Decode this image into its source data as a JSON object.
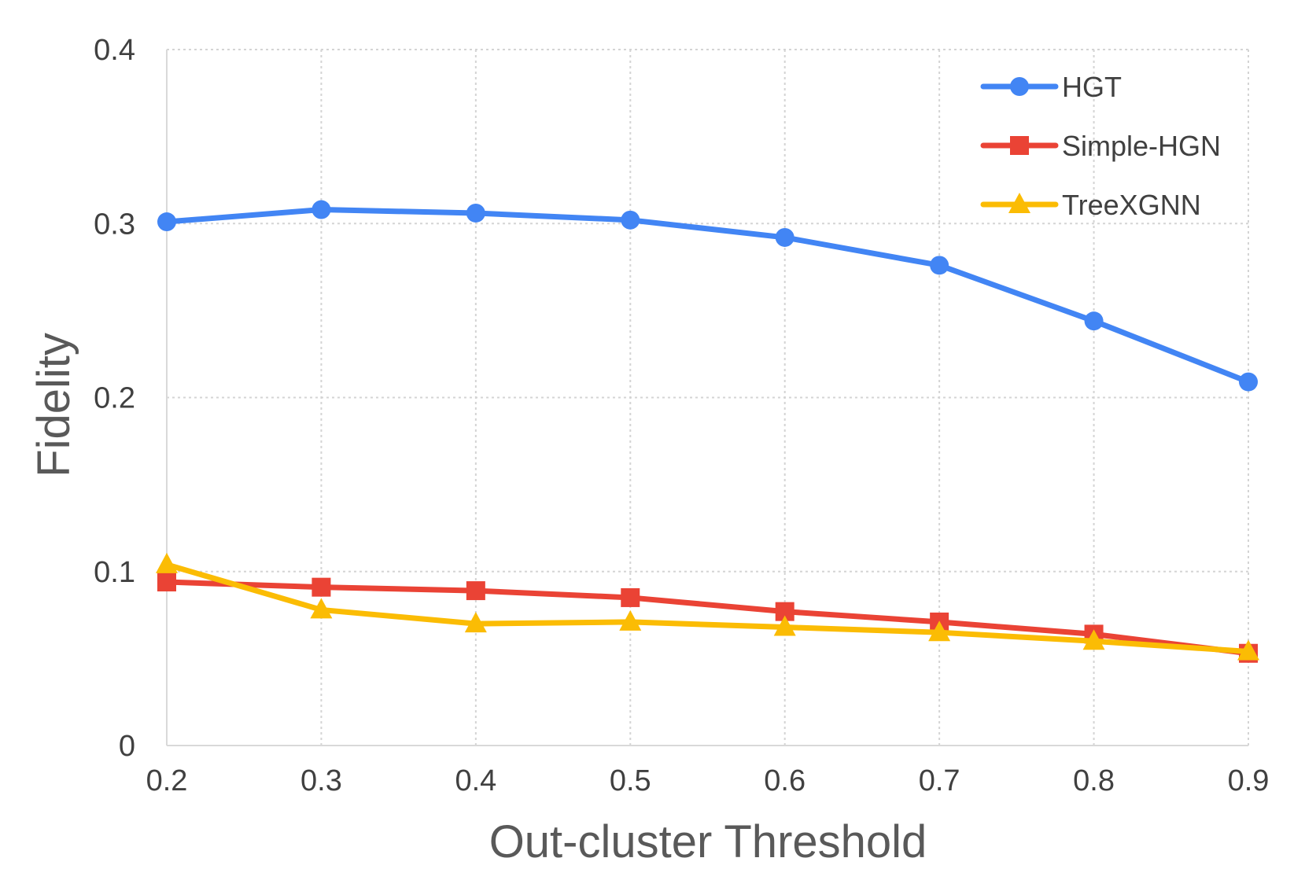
{
  "chart_data": {
    "type": "line",
    "title": "",
    "xlabel": "Out-cluster Threshold",
    "ylabel": "Fidelity",
    "x": [
      0.2,
      0.3,
      0.4,
      0.5,
      0.6,
      0.7,
      0.8,
      0.9
    ],
    "x_tick_labels": [
      "0.2",
      "0.3",
      "0.4",
      "0.5",
      "0.6",
      "0.7",
      "0.8",
      "0.9"
    ],
    "y_tick_values": [
      0,
      0.1,
      0.2,
      0.3,
      0.4
    ],
    "y_tick_labels": [
      "0",
      "0.1",
      "0.2",
      "0.3",
      "0.4"
    ],
    "xlim": [
      0.2,
      0.9
    ],
    "ylim": [
      0,
      0.4
    ],
    "grid": true,
    "legend_position": "top-right",
    "series": [
      {
        "name": "HGT",
        "color": "#4285f4",
        "marker": "circle",
        "values": [
          0.301,
          0.308,
          0.306,
          0.302,
          0.292,
          0.276,
          0.244,
          0.209
        ]
      },
      {
        "name": "Simple-HGN",
        "color": "#ea4335",
        "marker": "square",
        "values": [
          0.094,
          0.091,
          0.089,
          0.085,
          0.077,
          0.071,
          0.064,
          0.053
        ]
      },
      {
        "name": "TreeXGNN",
        "color": "#fbbc04",
        "marker": "triangle",
        "values": [
          0.104,
          0.078,
          0.07,
          0.071,
          0.068,
          0.065,
          0.06,
          0.054
        ]
      }
    ]
  }
}
